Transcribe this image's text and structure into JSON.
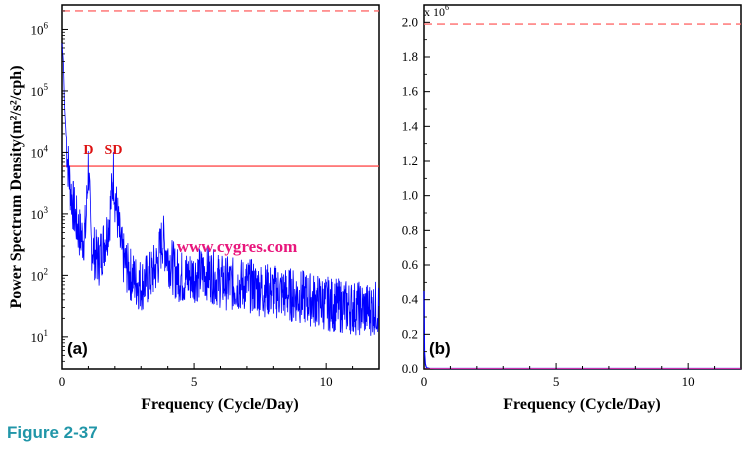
{
  "figure_caption": "Figure 2-37",
  "chart_data": [
    {
      "panel": "(a)",
      "type": "line",
      "yscale": "log",
      "xlabel": "Frequency (Cycle/Day)",
      "ylabel": "Power Spectrum Density(m²/s²/cph)",
      "xlim": [
        0,
        12
      ],
      "ylim": [
        3,
        2500000
      ],
      "xticks": [
        0,
        5,
        10
      ],
      "yticks": [
        {
          "v": 10,
          "mant": "10",
          "exp": "1"
        },
        {
          "v": 100,
          "mant": "10",
          "exp": "2"
        },
        {
          "v": 1000,
          "mant": "10",
          "exp": "3"
        },
        {
          "v": 10000,
          "mant": "10",
          "exp": "4"
        },
        {
          "v": 100000,
          "mant": "10",
          "exp": "5"
        },
        {
          "v": 1000000,
          "mant": "10",
          "exp": "6"
        }
      ],
      "annotations": [
        {
          "text": "D",
          "x": 1.0,
          "y": 9000
        },
        {
          "text": "SD",
          "x": 1.95,
          "y": 9000
        }
      ],
      "watermark": "www.cygres.com",
      "hlines": [
        {
          "y": 2000000,
          "style": "dashed",
          "color": "#ff6b6b"
        },
        {
          "y": 6000,
          "style": "solid",
          "color": "#ff4d4d"
        }
      ],
      "series": [
        {
          "color": "#0000ff",
          "x": [
            0.0,
            0.05,
            0.1,
            0.2,
            0.3,
            0.4,
            0.5,
            0.6,
            0.7,
            0.8,
            0.9,
            1.0,
            1.1,
            1.2,
            1.3,
            1.4,
            1.5,
            1.6,
            1.7,
            1.8,
            1.9,
            1.95,
            2.0,
            2.1,
            2.2,
            2.3,
            2.5,
            2.8,
            3.0,
            3.3,
            3.6,
            3.8,
            4.0,
            4.3,
            4.6,
            5.0,
            5.5,
            6.0,
            6.5,
            7.0,
            7.5,
            8.0,
            8.5,
            9.0,
            9.5,
            10.0,
            10.5,
            11.0,
            11.5,
            12.0
          ],
          "y": [
            600000,
            300000,
            50000,
            9000,
            3000,
            1500,
            900,
            600,
            450,
            400,
            600,
            7000,
            350,
            250,
            200,
            180,
            250,
            350,
            500,
            900,
            2500,
            5000,
            2000,
            900,
            350,
            200,
            120,
            80,
            70,
            90,
            150,
            400,
            200,
            110,
            90,
            100,
            110,
            80,
            70,
            70,
            60,
            55,
            50,
            45,
            40,
            35,
            32,
            30,
            28,
            30
          ]
        }
      ]
    },
    {
      "panel": "(b)",
      "type": "line",
      "yscale": "linear",
      "xlabel": "Frequency (Cycle/Day)",
      "ylabel": "",
      "xlim": [
        0,
        12
      ],
      "ylim": [
        0,
        2.1
      ],
      "multiplier": "x 10",
      "multiplier_exp": "6",
      "xticks": [
        0,
        5,
        10
      ],
      "yticks": [
        "0.0",
        "0.2",
        "0.4",
        "0.6",
        "0.8",
        "1.0",
        "1.2",
        "1.4",
        "1.6",
        "1.8",
        "2.0"
      ],
      "hlines": [
        {
          "y": 1.99,
          "style": "dashed",
          "color": "#ff6b6b"
        }
      ],
      "series": [
        {
          "color": "#0000ff",
          "x": [
            0.0,
            0.02,
            0.05,
            0.08,
            0.12,
            0.2,
            0.4,
            1.0,
            2.0,
            12.0
          ],
          "y": [
            0.45,
            0.1,
            0.03,
            0.012,
            0.006,
            0.004,
            0.003,
            0.003,
            0.003,
            0.003
          ]
        }
      ]
    }
  ]
}
